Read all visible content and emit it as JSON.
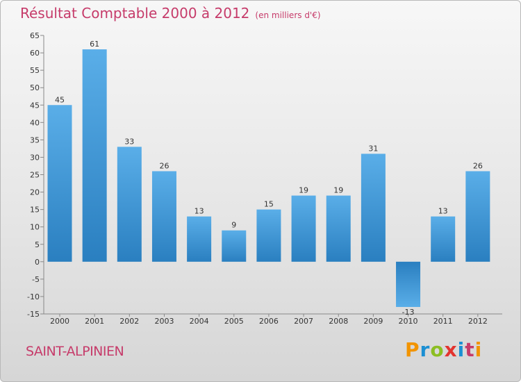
{
  "header": {
    "title": "Résultat Comptable 2000 à 2012",
    "subtitle": "(en milliers d'€)"
  },
  "footer": {
    "town": "SAINT-ALPINIEN",
    "logo": "Proxiti"
  },
  "colors": {
    "title": "#c63b6a",
    "bar_light": "#5aaee8",
    "bar_dark": "#2a7fc0"
  },
  "chart_data": {
    "type": "bar",
    "title": "Résultat Comptable 2000 à 2012",
    "subtitle": "(en milliers d'€)",
    "xlabel": "",
    "ylabel": "",
    "categories": [
      "2000",
      "2001",
      "2002",
      "2003",
      "2004",
      "2005",
      "2006",
      "2007",
      "2008",
      "2009",
      "2010",
      "2011",
      "2012"
    ],
    "values": [
      45,
      61,
      33,
      26,
      13,
      9,
      15,
      19,
      19,
      31,
      -13,
      13,
      26
    ],
    "ylim": [
      -15,
      65
    ],
    "yticks": [
      65,
      60,
      55,
      50,
      45,
      40,
      35,
      30,
      25,
      20,
      15,
      10,
      5,
      0,
      -5,
      -10,
      -15
    ],
    "grid": false,
    "legend": "none"
  }
}
